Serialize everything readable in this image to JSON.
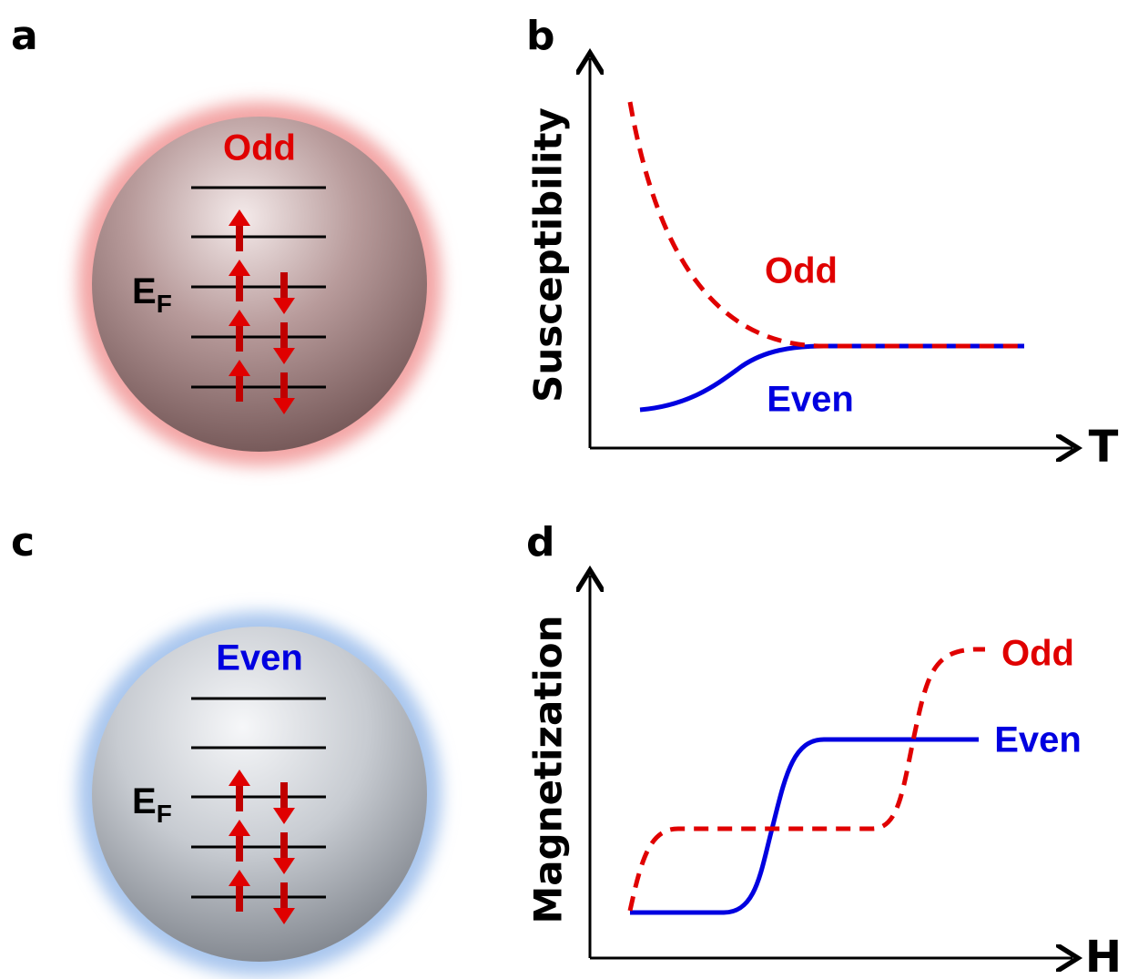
{
  "panels": [
    {
      "label": "a",
      "title": "Odd",
      "fermi_level": {
        "symbol": "E",
        "subscript": "F"
      }
    },
    {
      "label": "b",
      "y_axis": "Susceptibility",
      "x_axis": "T",
      "curves": [
        {
          "name": "Odd"
        },
        {
          "name": "Even"
        }
      ]
    },
    {
      "label": "c",
      "title": "Even",
      "fermi_level": {
        "symbol": "E",
        "subscript": "F"
      }
    },
    {
      "label": "d",
      "y_axis": "Magnetization",
      "x_axis": "H",
      "curves": [
        {
          "name": "Odd"
        },
        {
          "name": "Even"
        }
      ]
    }
  ]
}
